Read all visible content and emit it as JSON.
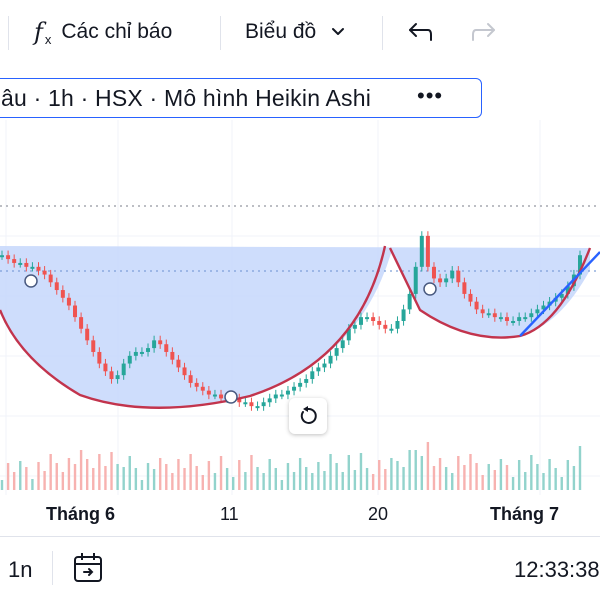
{
  "toolbar": {
    "indicators_label": "Các chỉ báo",
    "chart_type_label": "Biểu đồ"
  },
  "legend": {
    "title": "âu · 1h · HSX · Mô hình Heikin Ashi",
    "more": "•••"
  },
  "chart_data": {
    "type": "candlestick",
    "style": "Heikin Ashi",
    "interval": "1h",
    "exchange": "HSX",
    "x_tick_labels": [
      "Tháng 6",
      "11",
      "20",
      "Tháng 7"
    ],
    "colors": {
      "up": "#26a69a",
      "down": "#ef5350",
      "cup_line": "#c2344d",
      "fill": "#c6d7fb",
      "trend_line": "#2962ff"
    },
    "trend": "cup-and-handle pattern: decline, rounded bottom, rise to peak, handle pullback, breakout",
    "candle_closes": [
      100,
      99,
      98,
      98,
      97,
      97,
      96,
      95,
      93,
      91,
      89,
      87,
      84,
      81,
      78,
      75,
      72,
      70,
      68,
      69,
      72,
      74,
      75,
      75,
      76,
      78,
      77,
      75,
      73,
      71,
      69,
      67,
      66,
      65,
      64,
      64,
      63,
      63,
      63,
      62,
      62,
      61,
      61,
      62,
      63,
      64,
      64,
      65,
      66,
      67,
      68,
      70,
      71,
      72,
      74,
      76,
      78,
      81,
      82,
      84,
      84,
      83,
      82,
      81,
      81,
      83,
      86,
      90,
      97,
      105,
      97,
      94,
      93,
      94,
      96,
      93,
      90,
      88,
      86,
      85,
      85,
      84,
      84,
      83,
      83,
      84,
      84,
      85,
      86,
      87,
      88,
      89,
      90,
      92,
      95,
      100
    ]
  },
  "bottombar": {
    "range_label": "1n",
    "clock": "12:33:38"
  }
}
